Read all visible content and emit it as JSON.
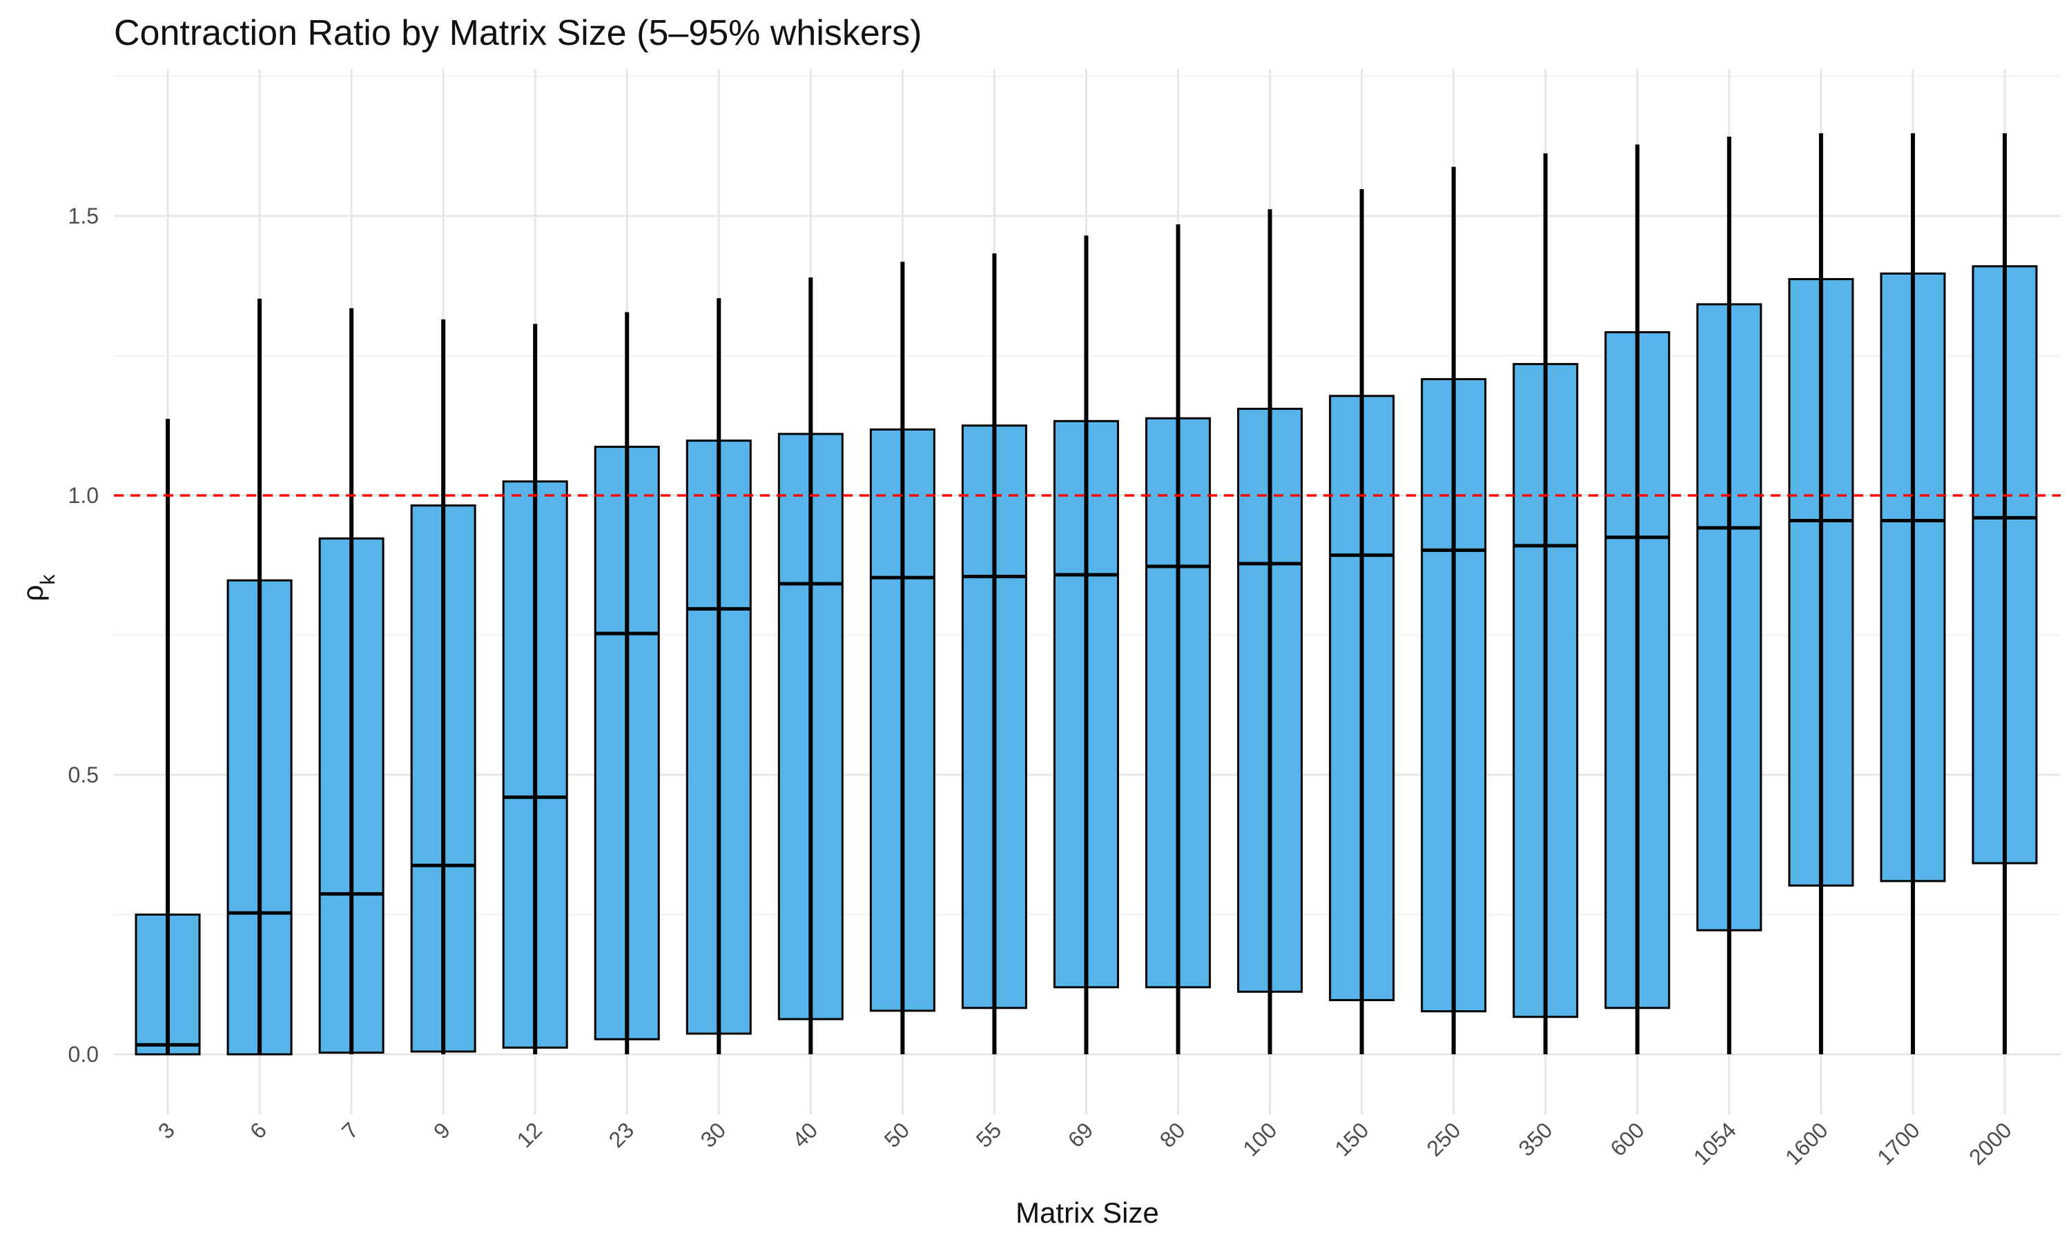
{
  "chart_data": {
    "type": "boxplot",
    "title": "Contraction Ratio by Matrix Size (5–95% whiskers)",
    "xlabel": "Matrix Size",
    "ylabel": "ρ",
    "ylabel_subscript": "k",
    "ylim": [
      -0.1,
      1.75
    ],
    "yticks": [
      "0.0",
      "0.5",
      "1.0",
      "1.5"
    ],
    "ytick_values": [
      0.0,
      0.5,
      1.0,
      1.5
    ],
    "reference_line": {
      "y": 1.0,
      "color": "#ff0000",
      "style": "dashed"
    },
    "box_fill": "#56b4e9",
    "box_stroke": "#000000",
    "grid": true,
    "categories": [
      "3",
      "6",
      "7",
      "9",
      "12",
      "23",
      "30",
      "40",
      "50",
      "55",
      "69",
      "80",
      "100",
      "150",
      "250",
      "350",
      "600",
      "1054",
      "1600",
      "1700",
      "2000"
    ],
    "whisker_low": [
      0.0,
      0.0,
      0.0,
      0.0,
      0.0,
      0.0,
      0.0,
      0.0,
      0.0,
      0.0,
      0.0,
      0.0,
      0.0,
      0.0,
      0.0,
      0.0,
      0.0,
      0.0,
      0.0,
      0.0,
      0.0
    ],
    "q1": [
      0.0,
      0.0,
      0.003,
      0.005,
      0.012,
      0.027,
      0.037,
      0.063,
      0.078,
      0.083,
      0.12,
      0.12,
      0.112,
      0.097,
      0.077,
      0.067,
      0.083,
      0.222,
      0.302,
      0.31,
      0.342
    ],
    "median": [
      0.017,
      0.253,
      0.287,
      0.338,
      0.46,
      0.753,
      0.797,
      0.842,
      0.853,
      0.855,
      0.858,
      0.873,
      0.878,
      0.893,
      0.902,
      0.91,
      0.925,
      0.942,
      0.955,
      0.955,
      0.96
    ],
    "q3": [
      0.25,
      0.848,
      0.923,
      0.982,
      1.025,
      1.087,
      1.098,
      1.11,
      1.118,
      1.125,
      1.133,
      1.138,
      1.155,
      1.178,
      1.208,
      1.235,
      1.292,
      1.342,
      1.387,
      1.397,
      1.41
    ],
    "whisker_high": [
      1.137,
      1.352,
      1.335,
      1.315,
      1.307,
      1.328,
      1.353,
      1.39,
      1.418,
      1.433,
      1.465,
      1.485,
      1.512,
      1.548,
      1.588,
      1.612,
      1.628,
      1.642,
      1.648,
      1.648,
      1.648
    ]
  }
}
